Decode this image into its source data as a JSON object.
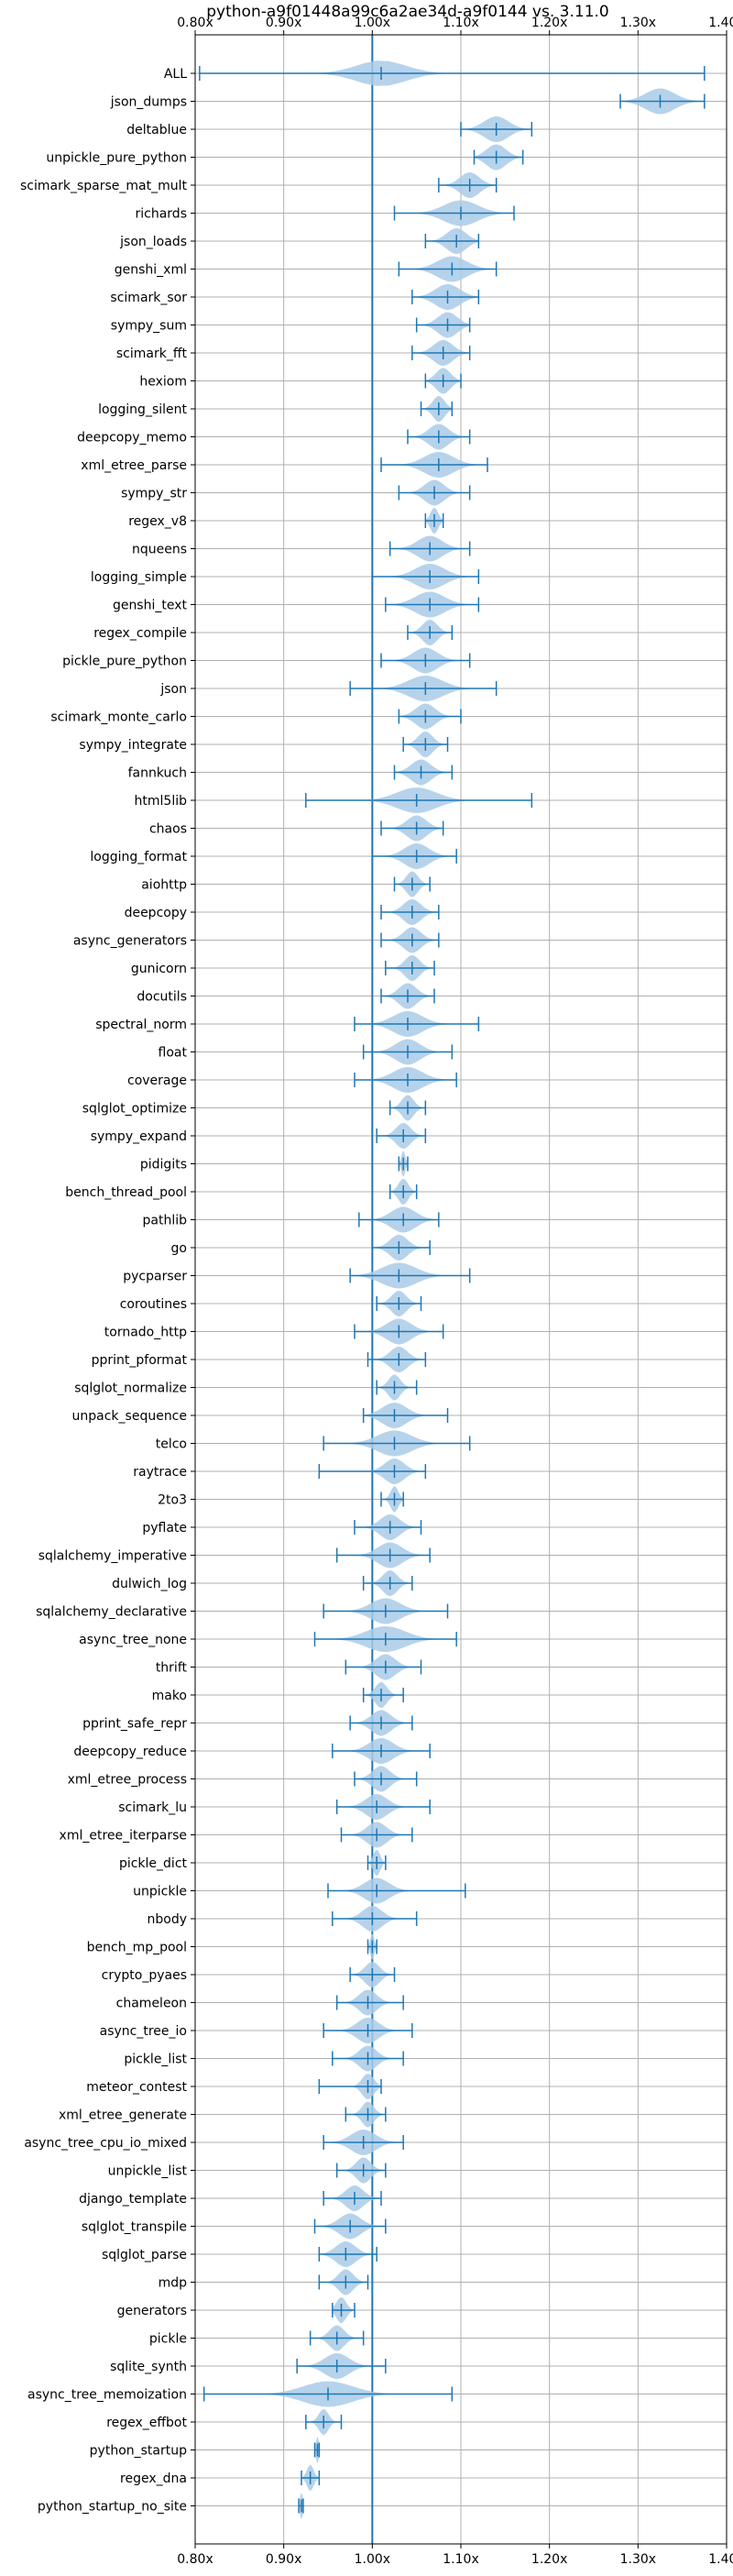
{
  "chart_data": {
    "type": "violin",
    "title": "python-a9f01448a99c6a2ae34d-a9f0144 vs. 3.11.0",
    "xlabel": "",
    "ylabel": "",
    "xlim": [
      0.8,
      1.4
    ],
    "x_ticks": [
      0.8,
      0.9,
      1.0,
      1.1,
      1.2,
      1.3,
      1.4
    ],
    "x_tick_labels": [
      "0.80x",
      "0.90x",
      "1.00x",
      "1.10x",
      "1.20x",
      "1.30x",
      "1.40x"
    ],
    "reference_line": 1.0,
    "grid": true,
    "colors": {
      "violin": "#a9cbe8",
      "whisker": "#1f77b4",
      "grid": "#b0b0b0"
    },
    "categories": [
      {
        "name": "ALL",
        "min": 0.805,
        "max": 1.375,
        "median": 1.01,
        "spread": 0.05
      },
      {
        "name": "json_dumps",
        "min": 1.28,
        "max": 1.375,
        "median": 1.325,
        "spread": 0.03
      },
      {
        "name": "deltablue",
        "min": 1.1,
        "max": 1.18,
        "median": 1.14,
        "spread": 0.025
      },
      {
        "name": "unpickle_pure_python",
        "min": 1.115,
        "max": 1.17,
        "median": 1.14,
        "spread": 0.02
      },
      {
        "name": "scimark_sparse_mat_mult",
        "min": 1.075,
        "max": 1.14,
        "median": 1.11,
        "spread": 0.02
      },
      {
        "name": "richards",
        "min": 1.025,
        "max": 1.16,
        "median": 1.1,
        "spread": 0.035
      },
      {
        "name": "json_loads",
        "min": 1.06,
        "max": 1.12,
        "median": 1.095,
        "spread": 0.02
      },
      {
        "name": "genshi_xml",
        "min": 1.03,
        "max": 1.14,
        "median": 1.09,
        "spread": 0.03
      },
      {
        "name": "scimark_sor",
        "min": 1.045,
        "max": 1.12,
        "median": 1.085,
        "spread": 0.025
      },
      {
        "name": "sympy_sum",
        "min": 1.05,
        "max": 1.11,
        "median": 1.085,
        "spread": 0.02
      },
      {
        "name": "scimark_fft",
        "min": 1.045,
        "max": 1.11,
        "median": 1.08,
        "spread": 0.02
      },
      {
        "name": "hexiom",
        "min": 1.06,
        "max": 1.1,
        "median": 1.08,
        "spread": 0.015
      },
      {
        "name": "logging_silent",
        "min": 1.055,
        "max": 1.09,
        "median": 1.075,
        "spread": 0.012
      },
      {
        "name": "deepcopy_memo",
        "min": 1.04,
        "max": 1.11,
        "median": 1.075,
        "spread": 0.02
      },
      {
        "name": "xml_etree_parse",
        "min": 1.01,
        "max": 1.13,
        "median": 1.075,
        "spread": 0.03
      },
      {
        "name": "sympy_str",
        "min": 1.03,
        "max": 1.11,
        "median": 1.07,
        "spread": 0.02
      },
      {
        "name": "regex_v8",
        "min": 1.06,
        "max": 1.08,
        "median": 1.07,
        "spread": 0.008
      },
      {
        "name": "nqueens",
        "min": 1.02,
        "max": 1.11,
        "median": 1.065,
        "spread": 0.025
      },
      {
        "name": "logging_simple",
        "min": 1.0,
        "max": 1.12,
        "median": 1.065,
        "spread": 0.03
      },
      {
        "name": "genshi_text",
        "min": 1.015,
        "max": 1.12,
        "median": 1.065,
        "spread": 0.03
      },
      {
        "name": "regex_compile",
        "min": 1.04,
        "max": 1.09,
        "median": 1.065,
        "spread": 0.015
      },
      {
        "name": "pickle_pure_python",
        "min": 1.01,
        "max": 1.11,
        "median": 1.06,
        "spread": 0.025
      },
      {
        "name": "json",
        "min": 0.975,
        "max": 1.14,
        "median": 1.06,
        "spread": 0.035
      },
      {
        "name": "scimark_monte_carlo",
        "min": 1.03,
        "max": 1.1,
        "median": 1.06,
        "spread": 0.02
      },
      {
        "name": "sympy_integrate",
        "min": 1.035,
        "max": 1.085,
        "median": 1.06,
        "spread": 0.015
      },
      {
        "name": "fannkuch",
        "min": 1.025,
        "max": 1.09,
        "median": 1.055,
        "spread": 0.02
      },
      {
        "name": "html5lib",
        "min": 0.925,
        "max": 1.18,
        "median": 1.05,
        "spread": 0.04
      },
      {
        "name": "chaos",
        "min": 1.01,
        "max": 1.08,
        "median": 1.05,
        "spread": 0.02
      },
      {
        "name": "logging_format",
        "min": 1.0,
        "max": 1.095,
        "median": 1.05,
        "spread": 0.025
      },
      {
        "name": "aiohttp",
        "min": 1.025,
        "max": 1.065,
        "median": 1.045,
        "spread": 0.012
      },
      {
        "name": "deepcopy",
        "min": 1.01,
        "max": 1.075,
        "median": 1.045,
        "spread": 0.018
      },
      {
        "name": "async_generators",
        "min": 1.01,
        "max": 1.075,
        "median": 1.045,
        "spread": 0.018
      },
      {
        "name": "gunicorn",
        "min": 1.015,
        "max": 1.07,
        "median": 1.045,
        "spread": 0.015
      },
      {
        "name": "docutils",
        "min": 1.01,
        "max": 1.07,
        "median": 1.04,
        "spread": 0.018
      },
      {
        "name": "spectral_norm",
        "min": 0.98,
        "max": 1.12,
        "median": 1.04,
        "spread": 0.03
      },
      {
        "name": "float",
        "min": 0.99,
        "max": 1.09,
        "median": 1.04,
        "spread": 0.025
      },
      {
        "name": "coverage",
        "min": 0.98,
        "max": 1.095,
        "median": 1.04,
        "spread": 0.03
      },
      {
        "name": "sqlglot_optimize",
        "min": 1.02,
        "max": 1.06,
        "median": 1.04,
        "spread": 0.012
      },
      {
        "name": "sympy_expand",
        "min": 1.005,
        "max": 1.06,
        "median": 1.035,
        "spread": 0.015
      },
      {
        "name": "pidigits",
        "min": 1.03,
        "max": 1.04,
        "median": 1.035,
        "spread": 0.004
      },
      {
        "name": "bench_thread_pool",
        "min": 1.02,
        "max": 1.05,
        "median": 1.035,
        "spread": 0.01
      },
      {
        "name": "pathlib",
        "min": 0.985,
        "max": 1.075,
        "median": 1.035,
        "spread": 0.025
      },
      {
        "name": "go",
        "min": 1.0,
        "max": 1.065,
        "median": 1.03,
        "spread": 0.018
      },
      {
        "name": "pycparser",
        "min": 0.975,
        "max": 1.11,
        "median": 1.03,
        "spread": 0.035
      },
      {
        "name": "coroutines",
        "min": 1.005,
        "max": 1.055,
        "median": 1.03,
        "spread": 0.015
      },
      {
        "name": "tornado_http",
        "min": 0.98,
        "max": 1.08,
        "median": 1.03,
        "spread": 0.025
      },
      {
        "name": "pprint_pformat",
        "min": 0.995,
        "max": 1.06,
        "median": 1.03,
        "spread": 0.018
      },
      {
        "name": "sqlglot_normalize",
        "min": 1.005,
        "max": 1.05,
        "median": 1.025,
        "spread": 0.012
      },
      {
        "name": "unpack_sequence",
        "min": 0.99,
        "max": 1.085,
        "median": 1.025,
        "spread": 0.025
      },
      {
        "name": "telco",
        "min": 0.945,
        "max": 1.11,
        "median": 1.025,
        "spread": 0.035
      },
      {
        "name": "raytrace",
        "min": 0.94,
        "max": 1.06,
        "median": 1.025,
        "spread": 0.02
      },
      {
        "name": "2to3",
        "min": 1.01,
        "max": 1.035,
        "median": 1.025,
        "spread": 0.008
      },
      {
        "name": "pyflate",
        "min": 0.98,
        "max": 1.055,
        "median": 1.02,
        "spread": 0.02
      },
      {
        "name": "sqlalchemy_imperative",
        "min": 0.96,
        "max": 1.065,
        "median": 1.02,
        "spread": 0.025
      },
      {
        "name": "dulwich_log",
        "min": 0.99,
        "max": 1.045,
        "median": 1.02,
        "spread": 0.015
      },
      {
        "name": "sqlalchemy_declarative",
        "min": 0.945,
        "max": 1.085,
        "median": 1.015,
        "spread": 0.03
      },
      {
        "name": "async_tree_none",
        "min": 0.935,
        "max": 1.095,
        "median": 1.015,
        "spread": 0.04
      },
      {
        "name": "thrift",
        "min": 0.97,
        "max": 1.055,
        "median": 1.015,
        "spread": 0.02
      },
      {
        "name": "mako",
        "min": 0.99,
        "max": 1.035,
        "median": 1.01,
        "spread": 0.012
      },
      {
        "name": "pprint_safe_repr",
        "min": 0.975,
        "max": 1.045,
        "median": 1.01,
        "spread": 0.02
      },
      {
        "name": "deepcopy_reduce",
        "min": 0.955,
        "max": 1.065,
        "median": 1.01,
        "spread": 0.025
      },
      {
        "name": "xml_etree_process",
        "min": 0.98,
        "max": 1.05,
        "median": 1.01,
        "spread": 0.018
      },
      {
        "name": "scimark_lu",
        "min": 0.96,
        "max": 1.065,
        "median": 1.005,
        "spread": 0.022
      },
      {
        "name": "xml_etree_iterparse",
        "min": 0.965,
        "max": 1.045,
        "median": 1.005,
        "spread": 0.02
      },
      {
        "name": "pickle_dict",
        "min": 0.995,
        "max": 1.015,
        "median": 1.005,
        "spread": 0.007
      },
      {
        "name": "unpickle",
        "min": 0.95,
        "max": 1.105,
        "median": 1.005,
        "spread": 0.025
      },
      {
        "name": "nbody",
        "min": 0.955,
        "max": 1.05,
        "median": 1.0,
        "spread": 0.02
      },
      {
        "name": "bench_mp_pool",
        "min": 0.995,
        "max": 1.005,
        "median": 1.0,
        "spread": 0.004
      },
      {
        "name": "crypto_pyaes",
        "min": 0.975,
        "max": 1.025,
        "median": 1.0,
        "spread": 0.015
      },
      {
        "name": "chameleon",
        "min": 0.96,
        "max": 1.035,
        "median": 0.995,
        "spread": 0.018
      },
      {
        "name": "async_tree_io",
        "min": 0.945,
        "max": 1.045,
        "median": 0.995,
        "spread": 0.022
      },
      {
        "name": "pickle_list",
        "min": 0.955,
        "max": 1.035,
        "median": 0.995,
        "spread": 0.018
      },
      {
        "name": "meteor_contest",
        "min": 0.94,
        "max": 1.01,
        "median": 0.995,
        "spread": 0.012
      },
      {
        "name": "xml_etree_generate",
        "min": 0.97,
        "max": 1.015,
        "median": 0.995,
        "spread": 0.012
      },
      {
        "name": "async_tree_cpu_io_mixed",
        "min": 0.945,
        "max": 1.035,
        "median": 0.99,
        "spread": 0.025
      },
      {
        "name": "unpickle_list",
        "min": 0.96,
        "max": 1.015,
        "median": 0.99,
        "spread": 0.015
      },
      {
        "name": "django_template",
        "min": 0.945,
        "max": 1.01,
        "median": 0.98,
        "spread": 0.018
      },
      {
        "name": "sqlglot_transpile",
        "min": 0.935,
        "max": 1.015,
        "median": 0.975,
        "spread": 0.022
      },
      {
        "name": "sqlglot_parse",
        "min": 0.94,
        "max": 1.005,
        "median": 0.97,
        "spread": 0.02
      },
      {
        "name": "mdp",
        "min": 0.94,
        "max": 0.995,
        "median": 0.97,
        "spread": 0.015
      },
      {
        "name": "generators",
        "min": 0.955,
        "max": 0.98,
        "median": 0.965,
        "spread": 0.01
      },
      {
        "name": "pickle",
        "min": 0.93,
        "max": 0.99,
        "median": 0.96,
        "spread": 0.015
      },
      {
        "name": "sqlite_synth",
        "min": 0.915,
        "max": 1.015,
        "median": 0.96,
        "spread": 0.025
      },
      {
        "name": "async_tree_memoization",
        "min": 0.81,
        "max": 1.09,
        "median": 0.95,
        "spread": 0.05
      },
      {
        "name": "regex_effbot",
        "min": 0.925,
        "max": 0.965,
        "median": 0.945,
        "spread": 0.01
      },
      {
        "name": "python_startup",
        "min": 0.935,
        "max": 0.94,
        "median": 0.938,
        "spread": 0.003
      },
      {
        "name": "regex_dna",
        "min": 0.92,
        "max": 0.94,
        "median": 0.93,
        "spread": 0.007
      },
      {
        "name": "python_startup_no_site",
        "min": 0.917,
        "max": 0.922,
        "median": 0.92,
        "spread": 0.003
      }
    ]
  }
}
